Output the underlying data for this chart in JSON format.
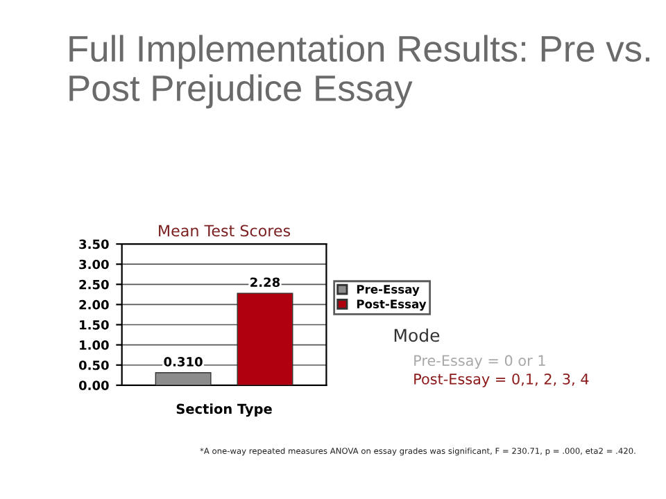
{
  "chart_data": {
    "type": "bar",
    "title": "Full Implementation Results: Pre vs. Post Prejudice Essay",
    "subtitle": "Mean Test Scores",
    "xlabel": "Section Type",
    "categories": [
      null
    ],
    "series": [
      {
        "name": "Pre-Essay",
        "color": "#8c8c8c",
        "values": [
          0.31
        ],
        "value_labels": [
          "0.310"
        ]
      },
      {
        "name": "Post-Essay",
        "color": "#b00010",
        "values": [
          2.28
        ],
        "value_labels": [
          "2.28"
        ]
      }
    ],
    "ylim": [
      0,
      3.5
    ],
    "yticks": [
      {
        "value": 0,
        "label": "0.00"
      },
      {
        "value": 0.5,
        "label": "0.50"
      },
      {
        "value": 1,
        "label": "1.00"
      },
      {
        "value": 1.5,
        "label": "1.50"
      },
      {
        "value": 2,
        "label": "2.00"
      },
      {
        "value": 2.5,
        "label": "2.50"
      },
      {
        "value": 3,
        "label": "3.00"
      },
      {
        "value": 3.5,
        "label": "3.50"
      }
    ],
    "grid": "y",
    "legend": "right",
    "annotations": [
      "Mode",
      "Pre-Essay = 0 or 1",
      "Post-Essay = 0,1, 2, 3, 4",
      "*A one-way repeated measures ANOVA on essay grades was significant, F = 230.71, p = .000, eta2 = .420."
    ]
  }
}
